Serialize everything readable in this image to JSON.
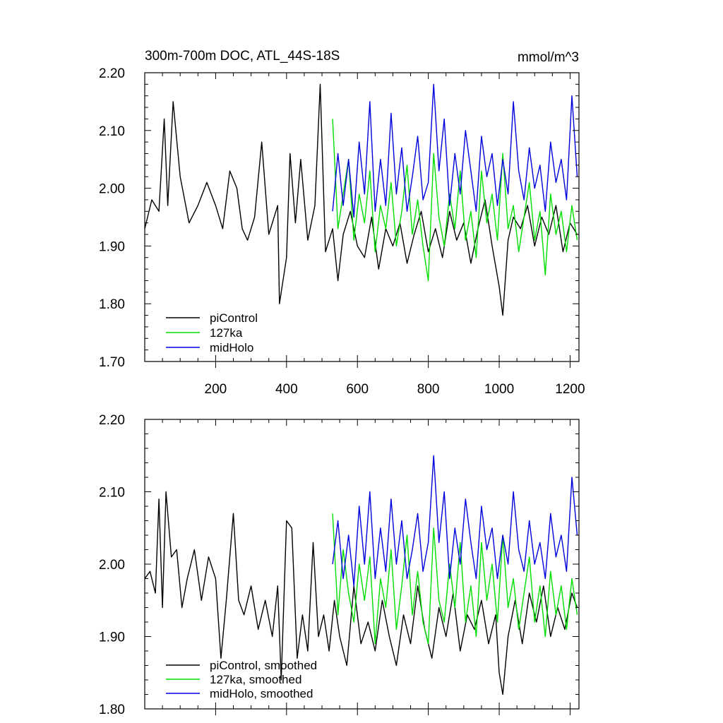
{
  "chart_data": [
    {
      "type": "line",
      "title": "300m-700m DOC, ATL_44S-18S",
      "units": "mmol/m^3",
      "xlim": [
        0,
        1225
      ],
      "ylim": [
        1.7,
        2.2
      ],
      "xticks": [
        200,
        400,
        600,
        800,
        1000,
        1200
      ],
      "xtick_labels": [
        "200",
        "400",
        "600",
        "800",
        "1000",
        "1200"
      ],
      "yticks": [
        1.7,
        1.8,
        1.9,
        2.0,
        2.1,
        2.2
      ],
      "ytick_labels": [
        "1.70",
        "1.80",
        "1.90",
        "2.00",
        "2.10",
        "2.20"
      ],
      "grid": false,
      "legend_position": "bottom-left",
      "series": [
        {
          "name": "piControl",
          "color": "#000000",
          "x": [
            0,
            20,
            40,
            55,
            65,
            80,
            100,
            125,
            150,
            175,
            200,
            220,
            240,
            260,
            275,
            290,
            310,
            330,
            350,
            375,
            380,
            400,
            410,
            425,
            440,
            460,
            480,
            495,
            510,
            530,
            545,
            560,
            580,
            600,
            620,
            640,
            660,
            680,
            700,
            720,
            740,
            760,
            780,
            800,
            820,
            840,
            860,
            880,
            900,
            920,
            940,
            960,
            980,
            1000,
            1010,
            1025,
            1040,
            1060,
            1080,
            1100,
            1120,
            1140,
            1160,
            1180,
            1200,
            1220
          ],
          "y": [
            1.93,
            1.98,
            1.96,
            2.12,
            1.97,
            2.15,
            2.02,
            1.94,
            1.97,
            2.01,
            1.97,
            1.93,
            2.03,
            2.0,
            1.93,
            1.91,
            1.95,
            2.08,
            1.92,
            1.97,
            1.8,
            1.88,
            2.06,
            1.94,
            2.05,
            1.91,
            1.97,
            2.18,
            1.89,
            1.93,
            1.84,
            1.92,
            1.96,
            1.9,
            1.88,
            1.95,
            1.86,
            1.93,
            1.9,
            1.94,
            1.87,
            1.92,
            1.96,
            1.89,
            1.93,
            1.88,
            1.96,
            1.91,
            1.94,
            1.87,
            1.93,
            1.98,
            1.9,
            1.83,
            1.78,
            1.91,
            1.95,
            1.93,
            1.97,
            1.9,
            1.95,
            1.92,
            1.97,
            1.89,
            1.94,
            1.92
          ]
        },
        {
          "name": "127ka",
          "color": "#00dd00",
          "x": [
            530,
            545,
            560,
            575,
            590,
            605,
            620,
            635,
            650,
            665,
            680,
            695,
            710,
            725,
            740,
            755,
            770,
            785,
            800,
            815,
            830,
            845,
            860,
            875,
            890,
            905,
            920,
            935,
            950,
            965,
            980,
            995,
            1010,
            1025,
            1040,
            1055,
            1070,
            1085,
            1100,
            1115,
            1130,
            1145,
            1160,
            1175,
            1190,
            1205,
            1220
          ],
          "y": [
            2.12,
            1.93,
            1.99,
            2.05,
            1.91,
            1.99,
            1.94,
            2.03,
            1.89,
            1.97,
            1.93,
            2.01,
            1.9,
            1.96,
            2.04,
            1.92,
            1.98,
            1.9,
            1.84,
            2.06,
            1.95,
            1.9,
            1.99,
            1.93,
            2.03,
            1.91,
            1.96,
            1.88,
            2.03,
            1.94,
            1.99,
            1.91,
            2.06,
            1.93,
            1.97,
            1.89,
            1.95,
            2.01,
            1.91,
            1.96,
            1.85,
            1.99,
            1.92,
            1.96,
            1.89,
            1.97,
            1.91
          ]
        },
        {
          "name": "midHolo",
          "color": "#0000dd",
          "x": [
            530,
            545,
            560,
            575,
            590,
            605,
            620,
            635,
            650,
            665,
            680,
            695,
            710,
            725,
            740,
            755,
            770,
            785,
            800,
            815,
            830,
            845,
            860,
            875,
            890,
            905,
            920,
            935,
            950,
            965,
            980,
            995,
            1010,
            1025,
            1040,
            1055,
            1070,
            1085,
            1100,
            1115,
            1130,
            1145,
            1160,
            1175,
            1190,
            1205,
            1220
          ],
          "y": [
            1.96,
            2.06,
            1.97,
            2.05,
            1.95,
            2.08,
            1.99,
            2.15,
            1.96,
            2.05,
            1.97,
            2.13,
            1.99,
            2.07,
            1.96,
            2.02,
            2.09,
            1.98,
            2.01,
            2.18,
            2.03,
            2.12,
            1.97,
            2.06,
            1.99,
            2.1,
            2.03,
            1.96,
            2.09,
            2.02,
            2.06,
            1.97,
            2.05,
            1.99,
            2.15,
            2.03,
            1.98,
            2.07,
            2.0,
            2.04,
            1.96,
            2.08,
            2.01,
            2.05,
            1.98,
            2.16,
            2.02
          ]
        }
      ]
    },
    {
      "type": "line",
      "xlim": [
        0,
        1225
      ],
      "ylim": [
        1.8,
        2.2
      ],
      "xticks": [
        200,
        400,
        600,
        800,
        1000,
        1200
      ],
      "yticks": [
        1.8,
        1.9,
        2.0,
        2.1,
        2.2
      ],
      "ytick_labels": [
        "1.80",
        "1.90",
        "2.00",
        "2.10",
        "2.20"
      ],
      "grid": false,
      "legend_position": "bottom-left",
      "series": [
        {
          "name": "piControl, smoothed",
          "color": "#000000",
          "x": [
            0,
            15,
            30,
            40,
            50,
            60,
            75,
            90,
            105,
            120,
            140,
            160,
            180,
            200,
            215,
            230,
            250,
            265,
            280,
            300,
            320,
            340,
            360,
            375,
            385,
            400,
            415,
            430,
            445,
            460,
            475,
            490,
            505,
            520,
            535,
            550,
            570,
            590,
            610,
            630,
            650,
            670,
            690,
            710,
            730,
            750,
            770,
            790,
            810,
            830,
            850,
            870,
            890,
            910,
            930,
            950,
            970,
            990,
            1000,
            1010,
            1025,
            1045,
            1065,
            1085,
            1105,
            1125,
            1145,
            1165,
            1185,
            1205,
            1220
          ],
          "y": [
            1.98,
            1.99,
            1.96,
            2.09,
            1.94,
            2.1,
            2.01,
            2.02,
            1.94,
            1.98,
            2.02,
            1.95,
            2.01,
            1.98,
            1.87,
            1.95,
            2.07,
            1.95,
            1.93,
            1.97,
            1.91,
            1.95,
            1.9,
            1.97,
            1.84,
            2.06,
            2.05,
            1.87,
            1.93,
            1.88,
            2.03,
            1.9,
            1.93,
            1.88,
            1.95,
            1.9,
            1.86,
            1.97,
            1.89,
            1.92,
            1.88,
            1.95,
            1.9,
            1.86,
            1.93,
            1.89,
            1.97,
            1.91,
            1.87,
            1.94,
            1.9,
            1.96,
            1.88,
            1.93,
            1.91,
            1.95,
            1.89,
            1.93,
            1.85,
            1.82,
            1.9,
            1.95,
            1.89,
            1.96,
            1.92,
            1.97,
            1.9,
            1.94,
            1.91,
            1.96,
            1.94
          ]
        },
        {
          "name": "127ka, smoothed",
          "color": "#00dd00",
          "x": [
            530,
            545,
            560,
            575,
            590,
            605,
            620,
            635,
            650,
            665,
            680,
            695,
            710,
            725,
            740,
            755,
            770,
            785,
            800,
            815,
            830,
            845,
            860,
            875,
            890,
            905,
            920,
            935,
            950,
            965,
            980,
            995,
            1010,
            1025,
            1040,
            1055,
            1070,
            1085,
            1100,
            1115,
            1130,
            1145,
            1160,
            1175,
            1190,
            1205,
            1220
          ],
          "y": [
            2.07,
            1.93,
            2.02,
            1.96,
            1.92,
            2.0,
            1.95,
            2.01,
            1.89,
            1.98,
            1.94,
            2.02,
            1.91,
            1.97,
            2.04,
            1.93,
            1.99,
            1.92,
            1.89,
            2.05,
            1.95,
            1.92,
            2.0,
            1.94,
            2.03,
            1.92,
            1.97,
            1.9,
            2.03,
            1.95,
            2.0,
            1.92,
            2.04,
            1.94,
            1.98,
            1.91,
            1.96,
            2.01,
            1.92,
            1.97,
            1.9,
            1.99,
            1.93,
            1.97,
            1.91,
            1.98,
            1.93
          ]
        },
        {
          "name": "midHolo, smoothed",
          "color": "#0000dd",
          "x": [
            530,
            545,
            560,
            575,
            590,
            605,
            620,
            635,
            650,
            665,
            680,
            695,
            710,
            725,
            740,
            755,
            770,
            785,
            800,
            815,
            830,
            845,
            860,
            875,
            890,
            905,
            920,
            935,
            950,
            965,
            980,
            995,
            1010,
            1025,
            1040,
            1055,
            1070,
            1085,
            1100,
            1115,
            1130,
            1145,
            1160,
            1175,
            1190,
            1205,
            1220
          ],
          "y": [
            2.0,
            2.06,
            1.98,
            2.04,
            1.97,
            2.08,
            2.0,
            2.1,
            1.98,
            2.05,
            1.99,
            2.09,
            2.0,
            2.06,
            1.98,
            2.02,
            2.07,
            1.99,
            2.03,
            2.15,
            2.03,
            2.1,
            1.98,
            2.05,
            2.0,
            2.09,
            2.03,
            1.98,
            2.08,
            2.02,
            2.05,
            1.98,
            2.04,
            2.0,
            2.1,
            2.02,
            1.99,
            2.06,
            2.0,
            2.03,
            1.98,
            2.07,
            2.01,
            2.04,
            1.99,
            2.12,
            2.04
          ]
        }
      ]
    }
  ]
}
